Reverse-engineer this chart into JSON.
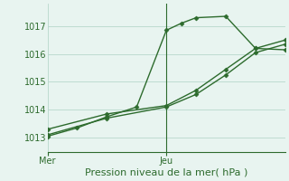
{
  "bg_color": "#e8f4f0",
  "line_color": "#2d6b2d",
  "grid_color": "#b8d8cc",
  "xlabel": "Pression niveau de la mer( hPa )",
  "ylim": [
    1012.5,
    1017.8
  ],
  "yticks": [
    1013,
    1014,
    1015,
    1016,
    1017
  ],
  "xlim": [
    0,
    16
  ],
  "x_mer": 0.0,
  "x_jeu": 8.0,
  "line1_x": [
    0,
    2,
    4,
    6,
    8,
    9,
    10,
    12,
    14,
    16
  ],
  "line1_y": [
    1013.05,
    1013.35,
    1013.75,
    1014.1,
    1016.85,
    1017.1,
    1017.3,
    1017.35,
    1016.2,
    1016.15
  ],
  "line2_x": [
    0,
    4,
    8,
    10,
    12,
    14,
    16
  ],
  "line2_y": [
    1013.3,
    1013.85,
    1014.15,
    1014.7,
    1015.45,
    1016.2,
    1016.5
  ],
  "line3_x": [
    0,
    4,
    8,
    10,
    12,
    14,
    16
  ],
  "line3_y": [
    1013.1,
    1013.7,
    1014.1,
    1014.55,
    1015.25,
    1016.05,
    1016.35
  ],
  "marker_size": 2.5,
  "line_width": 1.0,
  "tick_fontsize": 7,
  "xlabel_fontsize": 8
}
